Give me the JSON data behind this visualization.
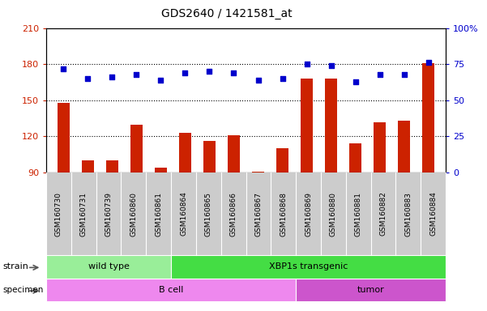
{
  "title": "GDS2640 / 1421581_at",
  "samples": [
    "GSM160730",
    "GSM160731",
    "GSM160739",
    "GSM160860",
    "GSM160861",
    "GSM160864",
    "GSM160865",
    "GSM160866",
    "GSM160867",
    "GSM160868",
    "GSM160869",
    "GSM160880",
    "GSM160881",
    "GSM160882",
    "GSM160883",
    "GSM160884"
  ],
  "counts": [
    148,
    100,
    100,
    130,
    94,
    123,
    116,
    121,
    91,
    110,
    168,
    168,
    114,
    132,
    133,
    181
  ],
  "percentiles": [
    72,
    65,
    66,
    68,
    64,
    69,
    70,
    69,
    64,
    65,
    75,
    74,
    63,
    68,
    68,
    76
  ],
  "ymin": 90,
  "ymax": 210,
  "yticks": [
    90,
    120,
    150,
    180,
    210
  ],
  "y2ticks": [
    0,
    25,
    50,
    75,
    100
  ],
  "dotted_lines": [
    120,
    150,
    180
  ],
  "bar_color": "#cc2200",
  "dot_color": "#0000cc",
  "strain_groups": [
    {
      "label": "wild type",
      "start": 0,
      "end": 5,
      "color": "#99ee99"
    },
    {
      "label": "XBP1s transgenic",
      "start": 5,
      "end": 16,
      "color": "#44dd44"
    }
  ],
  "specimen_groups": [
    {
      "label": "B cell",
      "start": 0,
      "end": 10,
      "color": "#ee88ee"
    },
    {
      "label": "tumor",
      "start": 10,
      "end": 16,
      "color": "#cc55cc"
    }
  ],
  "tick_area_color": "#cccccc",
  "bg_color": "#ffffff"
}
